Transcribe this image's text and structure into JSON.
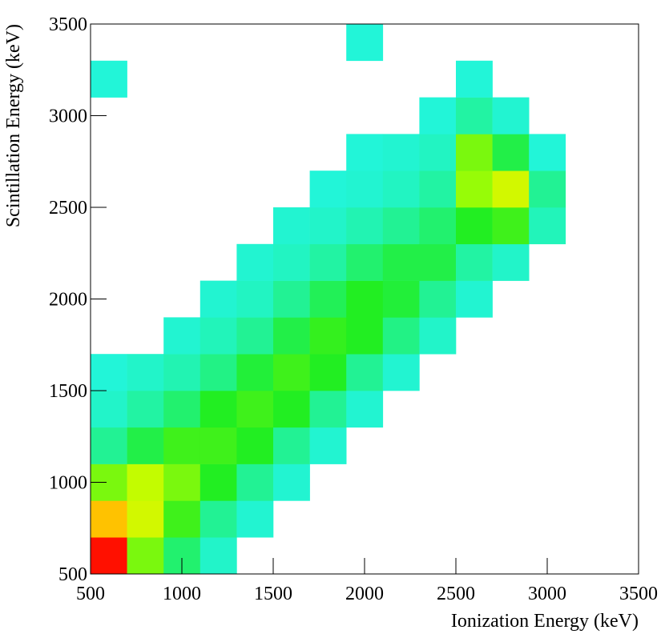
{
  "chart_data": {
    "type": "heatmap",
    "x_label": "Ionization Energy (keV)",
    "y_label": "Scintillation Energy (keV)",
    "xbins": [
      500,
      700,
      900,
      1100,
      1300,
      1500,
      1700,
      1900,
      2100,
      2300,
      2500,
      2700,
      2900,
      3100,
      3300,
      3500
    ],
    "ybins": [
      500,
      700,
      900,
      1100,
      1300,
      1500,
      1700,
      1900,
      2100,
      2300,
      2500,
      2700,
      2900,
      3100,
      3300,
      3500
    ],
    "z": [
      [
        100,
        40,
        15,
        3,
        0,
        0,
        0,
        0,
        0,
        0,
        0,
        0,
        0,
        0,
        0
      ],
      [
        80,
        60,
        30,
        10,
        2,
        0,
        0,
        0,
        0,
        0,
        0,
        0,
        0,
        0,
        0
      ],
      [
        40,
        55,
        40,
        25,
        10,
        2,
        0,
        0,
        0,
        0,
        0,
        0,
        0,
        0,
        0
      ],
      [
        10,
        20,
        30,
        30,
        25,
        10,
        2,
        0,
        0,
        0,
        0,
        0,
        0,
        0,
        0
      ],
      [
        3,
        8,
        15,
        25,
        30,
        25,
        10,
        2,
        0,
        0,
        0,
        0,
        0,
        0,
        0
      ],
      [
        1,
        3,
        6,
        12,
        22,
        30,
        25,
        10,
        2,
        0,
        0,
        0,
        0,
        0,
        0
      ],
      [
        0,
        0,
        2,
        5,
        10,
        20,
        28,
        25,
        12,
        3,
        0,
        0,
        0,
        0,
        0
      ],
      [
        0,
        0,
        0,
        2,
        4,
        10,
        18,
        25,
        22,
        10,
        2,
        0,
        0,
        0,
        0
      ],
      [
        0,
        0,
        0,
        0,
        2,
        4,
        8,
        15,
        20,
        20,
        8,
        3,
        0,
        0,
        0
      ],
      [
        0,
        0,
        0,
        0,
        0,
        2,
        3,
        6,
        10,
        15,
        25,
        30,
        5,
        0,
        0
      ],
      [
        0,
        0,
        0,
        0,
        0,
        0,
        1,
        2,
        4,
        8,
        45,
        60,
        10,
        0,
        0
      ],
      [
        0,
        0,
        0,
        0,
        0,
        0,
        0,
        1,
        2,
        4,
        40,
        20,
        1,
        0,
        0
      ],
      [
        0,
        0,
        0,
        0,
        0,
        0,
        0,
        0,
        0,
        1,
        8,
        2,
        0,
        0,
        0
      ],
      [
        1,
        0,
        0,
        0,
        0,
        0,
        0,
        0,
        0,
        0,
        1,
        0,
        0,
        0,
        0
      ],
      [
        0,
        0,
        0,
        0,
        0,
        0,
        0,
        1,
        0,
        0,
        0,
        0,
        0,
        0,
        0
      ]
    ],
    "colormap": [
      "#22f5e0",
      "#22ee22",
      "#b4ff00",
      "#ffee00",
      "#ff1000"
    ],
    "xlim": [
      500,
      3500
    ],
    "ylim": [
      500,
      3500
    ],
    "xticks": [
      500,
      1000,
      1500,
      2000,
      2500,
      3000,
      3500
    ],
    "yticks": [
      500,
      1000,
      1500,
      2000,
      2500,
      3000,
      3500
    ]
  }
}
